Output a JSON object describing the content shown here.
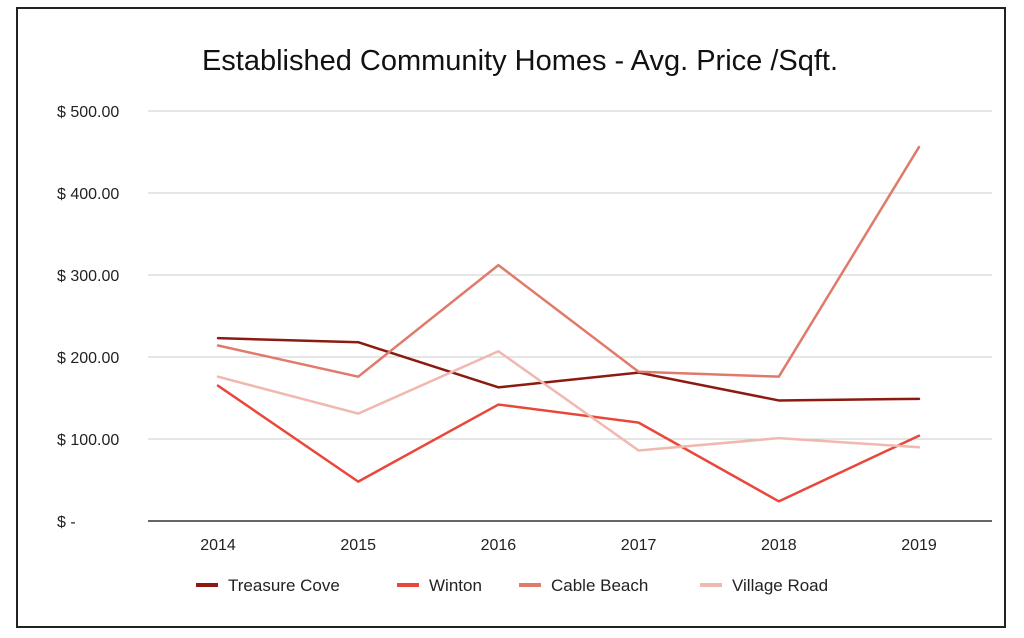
{
  "chart_data": {
    "type": "line",
    "title": "Established Community Homes - Avg. Price /Sqft.",
    "xlabel": "",
    "ylabel": "",
    "categories": [
      "2014",
      "2015",
      "2016",
      "2017",
      "2018",
      "2019"
    ],
    "ylim": [
      0,
      500
    ],
    "yticks": [
      0,
      100,
      200,
      300,
      400,
      500
    ],
    "ytick_labels": [
      "$ -",
      "$ 100.00",
      "$ 200.00",
      "$ 300.00",
      "$ 400.00",
      "$ 500.00"
    ],
    "grid": true,
    "legend_position": "bottom",
    "series": [
      {
        "name": "Treasure Cove",
        "color": "#8b1a10",
        "values": [
          223,
          218,
          163,
          181,
          147,
          149
        ]
      },
      {
        "name": "Winton",
        "color": "#e8473a",
        "values": [
          165,
          48,
          142,
          120,
          24,
          104
        ]
      },
      {
        "name": "Cable Beach",
        "color": "#e07a6a",
        "values": [
          214,
          176,
          312,
          182,
          176,
          456
        ]
      },
      {
        "name": "Village Road",
        "color": "#f0b8ae",
        "values": [
          176,
          131,
          207,
          86,
          101,
          90
        ]
      }
    ]
  }
}
